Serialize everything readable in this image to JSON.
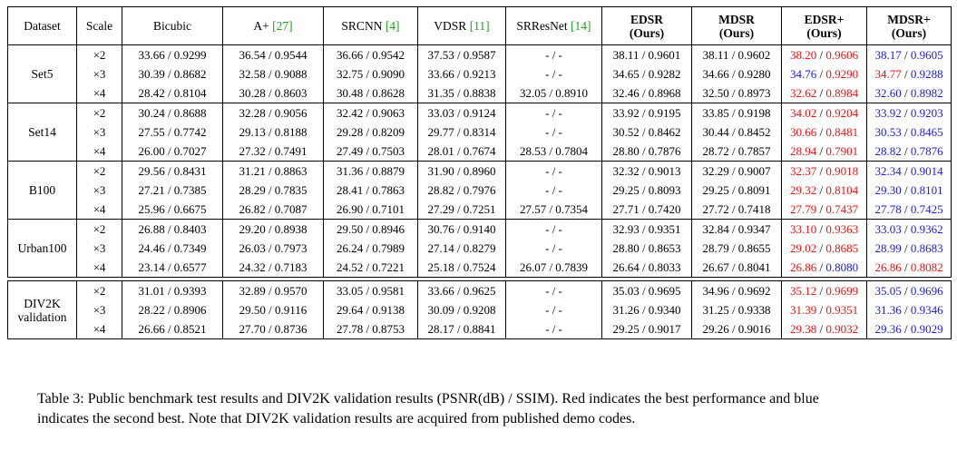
{
  "columns": [
    {
      "key": "dataset",
      "label": "Dataset",
      "width": 76,
      "bold": false
    },
    {
      "key": "scale",
      "label": "Scale",
      "width": 50,
      "bold": false
    },
    {
      "key": "bicubic",
      "label": "Bicubic",
      "width": 111,
      "bold": false
    },
    {
      "key": "aplus",
      "label": "A+",
      "cite": "[27]",
      "width": 111,
      "bold": false
    },
    {
      "key": "srcnn",
      "label": "SRCNN",
      "cite": "[4]",
      "width": 104,
      "bold": false
    },
    {
      "key": "vdsr",
      "label": "VDSR",
      "cite": "[11]",
      "width": 97,
      "bold": false
    },
    {
      "key": "srresnet",
      "label": "SRResNet",
      "cite": "[14]",
      "width": 106,
      "bold": false
    },
    {
      "key": "edsr",
      "label": "EDSR",
      "sub": "(Ours)",
      "width": 99,
      "bold": true
    },
    {
      "key": "mdsr",
      "label": "MDSR",
      "sub": "(Ours)",
      "width": 99,
      "bold": true
    },
    {
      "key": "edsrp",
      "label": "EDSR+",
      "sub": "(Ours)",
      "width": 94,
      "bold": true
    },
    {
      "key": "mdsrp",
      "label": "MDSR+",
      "sub": "(Ours)",
      "width": 93,
      "bold": true
    }
  ],
  "groups": [
    {
      "name": "Set5",
      "scales": [
        "×2",
        "×3",
        "×4"
      ],
      "rows": [
        [
          {
            "t": "33.66 / 0.9299"
          },
          {
            "t": "36.54 / 0.9544"
          },
          {
            "t": "36.66 / 0.9542"
          },
          {
            "t": "37.53 / 0.9587"
          },
          {
            "t": "- / -"
          },
          {
            "t": "38.11 / 0.9601"
          },
          {
            "t": "38.11 / 0.9602"
          },
          {
            "p": "38.20",
            "pc": "red",
            "s": "0.9606",
            "sc": "red"
          },
          {
            "p": "38.17",
            "pc": "blue",
            "s": "0.9605",
            "sc": "blue"
          }
        ],
        [
          {
            "t": "30.39 / 0.8682"
          },
          {
            "t": "32.58 / 0.9088"
          },
          {
            "t": "32.75 / 0.9090"
          },
          {
            "t": "33.66 / 0.9213"
          },
          {
            "t": "- / -"
          },
          {
            "t": "34.65 / 0.9282"
          },
          {
            "t": "34.66 / 0.9280"
          },
          {
            "p": "34.76",
            "pc": "blue",
            "s": "0.9290",
            "sc": "red"
          },
          {
            "p": "34.77",
            "pc": "red",
            "s": "0.9288",
            "sc": "blue"
          }
        ],
        [
          {
            "t": "28.42 / 0.8104"
          },
          {
            "t": "30.28 / 0.8603"
          },
          {
            "t": "30.48 / 0.8628"
          },
          {
            "t": "31.35 / 0.8838"
          },
          {
            "t": "32.05 / 0.8910"
          },
          {
            "t": "32.46 / 0.8968"
          },
          {
            "t": "32.50 / 0.8973"
          },
          {
            "p": "32.62",
            "pc": "red",
            "s": "0.8984",
            "sc": "red"
          },
          {
            "p": "32.60",
            "pc": "blue",
            "s": "0.8982",
            "sc": "blue"
          }
        ]
      ]
    },
    {
      "name": "Set14",
      "scales": [
        "×2",
        "×3",
        "×4"
      ],
      "rows": [
        [
          {
            "t": "30.24 / 0.8688"
          },
          {
            "t": "32.28 / 0.9056"
          },
          {
            "t": "32.42 / 0.9063"
          },
          {
            "t": "33.03 / 0.9124"
          },
          {
            "t": "- / -"
          },
          {
            "t": "33.92 / 0.9195"
          },
          {
            "t": "33.85 / 0.9198"
          },
          {
            "p": "34.02",
            "pc": "red",
            "s": "0.9204",
            "sc": "red"
          },
          {
            "p": "33.92",
            "pc": "blue",
            "s": "0.9203",
            "sc": "blue"
          }
        ],
        [
          {
            "t": "27.55 / 0.7742"
          },
          {
            "t": "29.13 / 0.8188"
          },
          {
            "t": "29.28 / 0.8209"
          },
          {
            "t": "29.77 / 0.8314"
          },
          {
            "t": "- / -"
          },
          {
            "t": "30.52 / 0.8462"
          },
          {
            "t": "30.44 / 0.8452"
          },
          {
            "p": "30.66",
            "pc": "red",
            "s": "0.8481",
            "sc": "red"
          },
          {
            "p": "30.53",
            "pc": "blue",
            "s": "0.8465",
            "sc": "blue"
          }
        ],
        [
          {
            "t": "26.00 / 0.7027"
          },
          {
            "t": "27.32 / 0.7491"
          },
          {
            "t": "27.49 / 0.7503"
          },
          {
            "t": "28.01 / 0.7674"
          },
          {
            "t": "28.53 / 0.7804"
          },
          {
            "t": "28.80 / 0.7876"
          },
          {
            "t": "28.72 / 0.7857"
          },
          {
            "p": "28.94",
            "pc": "red",
            "s": "0.7901",
            "sc": "red"
          },
          {
            "p": "28.82",
            "pc": "blue",
            "s": "0.7876",
            "sc": "blue"
          }
        ]
      ]
    },
    {
      "name": "B100",
      "scales": [
        "×2",
        "×3",
        "×4"
      ],
      "rows": [
        [
          {
            "t": "29.56 / 0.8431"
          },
          {
            "t": "31.21 / 0.8863"
          },
          {
            "t": "31.36 / 0.8879"
          },
          {
            "t": "31.90 / 0.8960"
          },
          {
            "t": "- / -"
          },
          {
            "t": "32.32 / 0.9013"
          },
          {
            "t": "32.29 / 0.9007"
          },
          {
            "p": "32.37",
            "pc": "red",
            "s": "0.9018",
            "sc": "red"
          },
          {
            "p": "32.34",
            "pc": "blue",
            "s": "0.9014",
            "sc": "blue"
          }
        ],
        [
          {
            "t": "27.21 / 0.7385"
          },
          {
            "t": "28.29 / 0.7835"
          },
          {
            "t": "28.41 / 0.7863"
          },
          {
            "t": "28.82 / 0.7976"
          },
          {
            "t": "- / -"
          },
          {
            "t": "29.25 / 0.8093"
          },
          {
            "t": "29.25 / 0.8091"
          },
          {
            "p": "29.32",
            "pc": "red",
            "s": "0.8104",
            "sc": "red"
          },
          {
            "p": "29.30",
            "pc": "blue",
            "s": "0.8101",
            "sc": "blue"
          }
        ],
        [
          {
            "t": "25.96 / 0.6675"
          },
          {
            "t": "26.82 / 0.7087"
          },
          {
            "t": "26.90 / 0.7101"
          },
          {
            "t": "27.29 / 0.7251"
          },
          {
            "t": "27.57 / 0.7354"
          },
          {
            "t": "27.71 / 0.7420"
          },
          {
            "t": "27.72 / 0.7418"
          },
          {
            "p": "27.79",
            "pc": "red",
            "s": "0.7437",
            "sc": "red"
          },
          {
            "p": "27.78",
            "pc": "blue",
            "s": "0.7425",
            "sc": "blue"
          }
        ]
      ]
    },
    {
      "name": "Urban100",
      "scales": [
        "×2",
        "×3",
        "×4"
      ],
      "rows": [
        [
          {
            "t": "26.88 / 0.8403"
          },
          {
            "t": "29.20 / 0.8938"
          },
          {
            "t": "29.50 / 0.8946"
          },
          {
            "t": "30.76 / 0.9140"
          },
          {
            "t": "- / -"
          },
          {
            "t": "32.93 / 0.9351"
          },
          {
            "t": "32.84 / 0.9347"
          },
          {
            "p": "33.10",
            "pc": "red",
            "s": "0.9363",
            "sc": "red"
          },
          {
            "p": "33.03",
            "pc": "blue",
            "s": "0.9362",
            "sc": "blue"
          }
        ],
        [
          {
            "t": "24.46 / 0.7349"
          },
          {
            "t": "26.03 / 0.7973"
          },
          {
            "t": "26.24 / 0.7989"
          },
          {
            "t": "27.14 / 0.8279"
          },
          {
            "t": "- / -"
          },
          {
            "t": "28.80 / 0.8653"
          },
          {
            "t": "28.79 / 0.8655"
          },
          {
            "p": "29.02",
            "pc": "red",
            "s": "0.8685",
            "sc": "red"
          },
          {
            "p": "28.99",
            "pc": "blue",
            "s": "0.8683",
            "sc": "blue"
          }
        ],
        [
          {
            "t": "23.14 / 0.6577"
          },
          {
            "t": "24.32 / 0.7183"
          },
          {
            "t": "24.52 / 0.7221"
          },
          {
            "t": "25.18 / 0.7524"
          },
          {
            "t": "26.07 / 0.7839"
          },
          {
            "t": "26.64 / 0.8033"
          },
          {
            "t": "26.67 / 0.8041"
          },
          {
            "p": "26.86",
            "pc": "red",
            "s": "0.8080",
            "sc": "blue"
          },
          {
            "p": "26.86",
            "pc": "red",
            "s": "0.8082",
            "sc": "red"
          }
        ]
      ]
    },
    {
      "name": "DIV2K validation",
      "nameLines": [
        "DIV2K",
        "validation"
      ],
      "separated": true,
      "scales": [
        "×2",
        "×3",
        "×4"
      ],
      "rows": [
        [
          {
            "t": "31.01 / 0.9393"
          },
          {
            "t": "32.89 / 0.9570"
          },
          {
            "t": "33.05 / 0.9581"
          },
          {
            "t": "33.66 / 0.9625"
          },
          {
            "t": "- / -"
          },
          {
            "t": "35.03 / 0.9695"
          },
          {
            "t": "34.96 / 0.9692"
          },
          {
            "p": "35.12",
            "pc": "red",
            "s": "0.9699",
            "sc": "red"
          },
          {
            "p": "35.05",
            "pc": "blue",
            "s": "0.9696",
            "sc": "blue"
          }
        ],
        [
          {
            "t": "28.22 / 0.8906"
          },
          {
            "t": "29.50 / 0.9116"
          },
          {
            "t": "29.64 / 0.9138"
          },
          {
            "t": "30.09 / 0.9208"
          },
          {
            "t": "- / -"
          },
          {
            "t": "31.26 / 0.9340"
          },
          {
            "t": "31.25 / 0.9338"
          },
          {
            "p": "31.39",
            "pc": "red",
            "s": "0.9351",
            "sc": "red"
          },
          {
            "p": "31.36",
            "pc": "blue",
            "s": "0.9346",
            "sc": "blue"
          }
        ],
        [
          {
            "t": "26.66 / 0.8521"
          },
          {
            "t": "27.70 / 0.8736"
          },
          {
            "t": "27.78 / 0.8753"
          },
          {
            "t": "28.17 / 0.8841"
          },
          {
            "t": "- / -"
          },
          {
            "t": "29.25 / 0.9017"
          },
          {
            "t": "29.26 / 0.9016"
          },
          {
            "p": "29.38",
            "pc": "red",
            "s": "0.9032",
            "sc": "red"
          },
          {
            "p": "29.36",
            "pc": "blue",
            "s": "0.9029",
            "sc": "blue"
          }
        ]
      ]
    }
  ],
  "caption": "Table 3: Public benchmark test results and DIV2K validation results (PSNR(dB) / SSIM). Red indicates the best performance and blue indicates the second best. Note that DIV2K validation results are acquired from published demo codes.",
  "colors": {
    "best": "#ee1111",
    "second": "#1a1ae8",
    "citation": "#1aa31a"
  }
}
